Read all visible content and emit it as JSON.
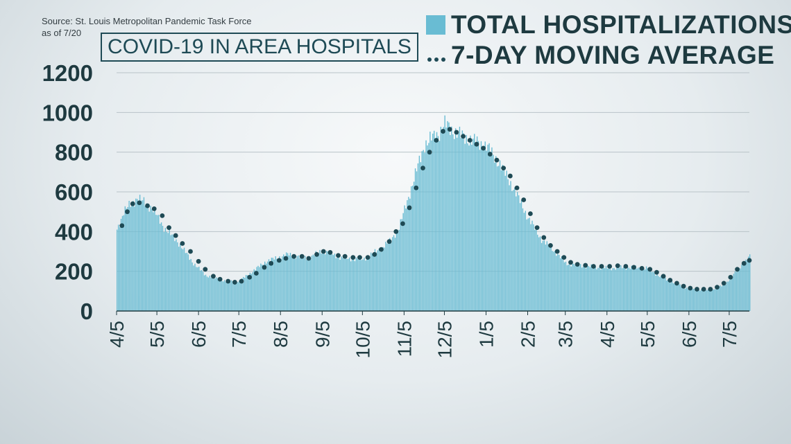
{
  "source_line1": "Source: St. Louis Metropolitan Pandemic Task Force",
  "source_line2": "as of 7/20",
  "chart_data": {
    "type": "bar",
    "title": "COVID-19 IN AREA HOSPITALS",
    "ylim": [
      0,
      1200
    ],
    "y_ticks": [
      0,
      200,
      400,
      600,
      800,
      1000,
      1200
    ],
    "x_tick_labels": [
      "4/5",
      "5/5",
      "6/5",
      "7/5",
      "8/5",
      "9/5",
      "10/5",
      "11/5",
      "12/5",
      "1/5",
      "2/5",
      "3/5",
      "4/5",
      "5/5",
      "6/5",
      "7/5"
    ],
    "x_first_date": "2020-04-05",
    "x_last_date": "2021-07-20",
    "grid": true,
    "legend_position": "top-right",
    "colors": {
      "bars": "#69bcd3",
      "average": "#1e4a55",
      "grid": "#b9c3c8",
      "axis": "#1e3a40"
    },
    "series": [
      {
        "name": "TOTAL HOSPITALIZATIONS",
        "kind": "bar",
        "anchors": [
          [
            "2020-04-05",
            410
          ],
          [
            "2020-04-10",
            500
          ],
          [
            "2020-04-20",
            570
          ],
          [
            "2020-05-01",
            520
          ],
          [
            "2020-05-10",
            420
          ],
          [
            "2020-05-20",
            350
          ],
          [
            "2020-06-01",
            240
          ],
          [
            "2020-06-10",
            180
          ],
          [
            "2020-06-25",
            150
          ],
          [
            "2020-07-05",
            150
          ],
          [
            "2020-07-15",
            200
          ],
          [
            "2020-07-25",
            250
          ],
          [
            "2020-08-10",
            285
          ],
          [
            "2020-08-25",
            265
          ],
          [
            "2020-09-05",
            305
          ],
          [
            "2020-09-20",
            265
          ],
          [
            "2020-10-05",
            260
          ],
          [
            "2020-10-15",
            300
          ],
          [
            "2020-10-25",
            350
          ],
          [
            "2020-11-01",
            420
          ],
          [
            "2020-11-10",
            620
          ],
          [
            "2020-11-20",
            840
          ],
          [
            "2020-12-01",
            900
          ],
          [
            "2020-12-05",
            940
          ],
          [
            "2020-12-15",
            890
          ],
          [
            "2020-12-25",
            860
          ],
          [
            "2021-01-05",
            830
          ],
          [
            "2021-01-15",
            740
          ],
          [
            "2021-01-25",
            620
          ],
          [
            "2021-02-05",
            470
          ],
          [
            "2021-02-15",
            360
          ],
          [
            "2021-02-25",
            300
          ],
          [
            "2021-03-05",
            240
          ],
          [
            "2021-03-20",
            225
          ],
          [
            "2021-04-05",
            215
          ],
          [
            "2021-04-20",
            220
          ],
          [
            "2021-05-05",
            215
          ],
          [
            "2021-05-15",
            170
          ],
          [
            "2021-05-25",
            140
          ],
          [
            "2021-06-05",
            110
          ],
          [
            "2021-06-20",
            105
          ],
          [
            "2021-07-01",
            130
          ],
          [
            "2021-07-10",
            200
          ],
          [
            "2021-07-20",
            275
          ]
        ]
      },
      {
        "name": "7-DAY MOVING AVERAGE",
        "kind": "dotted-line",
        "values": [
          [
            "2020-04-09",
            430
          ],
          [
            "2020-04-13",
            500
          ],
          [
            "2020-04-17",
            540
          ],
          [
            "2020-04-22",
            545
          ],
          [
            "2020-04-28",
            530
          ],
          [
            "2020-05-03",
            515
          ],
          [
            "2020-05-09",
            480
          ],
          [
            "2020-05-14",
            420
          ],
          [
            "2020-05-19",
            380
          ],
          [
            "2020-05-24",
            340
          ],
          [
            "2020-05-30",
            300
          ],
          [
            "2020-06-05",
            250
          ],
          [
            "2020-06-10",
            210
          ],
          [
            "2020-06-16",
            175
          ],
          [
            "2020-06-21",
            160
          ],
          [
            "2020-06-27",
            150
          ],
          [
            "2020-07-02",
            145
          ],
          [
            "2020-07-07",
            150
          ],
          [
            "2020-07-13",
            170
          ],
          [
            "2020-07-18",
            190
          ],
          [
            "2020-07-24",
            220
          ],
          [
            "2020-07-29",
            240
          ],
          [
            "2020-08-04",
            255
          ],
          [
            "2020-08-09",
            265
          ],
          [
            "2020-08-15",
            275
          ],
          [
            "2020-08-21",
            275
          ],
          [
            "2020-08-26",
            265
          ],
          [
            "2020-09-01",
            285
          ],
          [
            "2020-09-06",
            300
          ],
          [
            "2020-09-11",
            295
          ],
          [
            "2020-09-17",
            280
          ],
          [
            "2020-09-22",
            275
          ],
          [
            "2020-09-28",
            270
          ],
          [
            "2020-10-03",
            270
          ],
          [
            "2020-10-09",
            270
          ],
          [
            "2020-10-14",
            285
          ],
          [
            "2020-10-19",
            310
          ],
          [
            "2020-10-25",
            350
          ],
          [
            "2020-10-30",
            400
          ],
          [
            "2020-11-04",
            440
          ],
          [
            "2020-11-09",
            520
          ],
          [
            "2020-11-14",
            620
          ],
          [
            "2020-11-19",
            720
          ],
          [
            "2020-11-24",
            800
          ],
          [
            "2020-11-29",
            860
          ],
          [
            "2020-12-04",
            905
          ],
          [
            "2020-12-09",
            915
          ],
          [
            "2020-12-14",
            900
          ],
          [
            "2020-12-19",
            880
          ],
          [
            "2020-12-24",
            860
          ],
          [
            "2020-12-29",
            840
          ],
          [
            "2021-01-03",
            820
          ],
          [
            "2021-01-08",
            790
          ],
          [
            "2021-01-13",
            760
          ],
          [
            "2021-01-18",
            720
          ],
          [
            "2021-01-23",
            680
          ],
          [
            "2021-01-28",
            620
          ],
          [
            "2021-02-02",
            560
          ],
          [
            "2021-02-07",
            490
          ],
          [
            "2021-02-12",
            420
          ],
          [
            "2021-02-17",
            370
          ],
          [
            "2021-02-22",
            330
          ],
          [
            "2021-02-27",
            300
          ],
          [
            "2021-03-04",
            270
          ],
          [
            "2021-03-09",
            245
          ],
          [
            "2021-03-14",
            235
          ],
          [
            "2021-03-20",
            230
          ],
          [
            "2021-03-26",
            225
          ],
          [
            "2021-04-01",
            225
          ],
          [
            "2021-04-07",
            225
          ],
          [
            "2021-04-13",
            228
          ],
          [
            "2021-04-19",
            225
          ],
          [
            "2021-04-25",
            220
          ],
          [
            "2021-05-01",
            215
          ],
          [
            "2021-05-07",
            210
          ],
          [
            "2021-05-12",
            195
          ],
          [
            "2021-05-17",
            175
          ],
          [
            "2021-05-22",
            155
          ],
          [
            "2021-05-27",
            140
          ],
          [
            "2021-06-01",
            125
          ],
          [
            "2021-06-06",
            115
          ],
          [
            "2021-06-11",
            110
          ],
          [
            "2021-06-16",
            110
          ],
          [
            "2021-06-21",
            110
          ],
          [
            "2021-06-26",
            120
          ],
          [
            "2021-07-01",
            140
          ],
          [
            "2021-07-06",
            170
          ],
          [
            "2021-07-11",
            210
          ],
          [
            "2021-07-16",
            240
          ],
          [
            "2021-07-20",
            255
          ]
        ]
      }
    ]
  }
}
